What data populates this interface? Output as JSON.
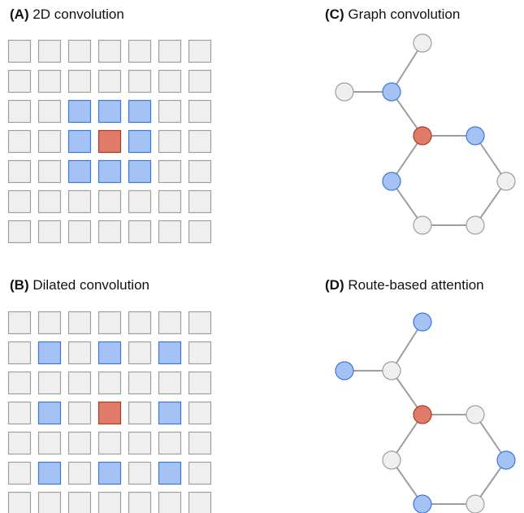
{
  "colors": {
    "grey_fill": "#efefef",
    "grey_stroke": "#9e9e9e",
    "blue_fill": "#a4c2f4",
    "blue_stroke": "#3c78d8",
    "red_fill": "#e07b6a",
    "red_stroke": "#a63d2c",
    "edge": "#9e9e9e"
  },
  "panels": {
    "a": {
      "letter": "(A)",
      "title": "2D convolution"
    },
    "b": {
      "letter": "(B)",
      "title": "Dilated convolution"
    },
    "c": {
      "letter": "(C)",
      "title": "Graph convolution"
    },
    "d": {
      "letter": "(D)",
      "title": "Route-based attention"
    }
  },
  "grids": {
    "a": {
      "rows": 7,
      "cols": 7,
      "cells": [
        [
          0,
          0,
          0,
          0,
          0,
          0,
          0
        ],
        [
          0,
          0,
          0,
          0,
          0,
          0,
          0
        ],
        [
          0,
          0,
          1,
          1,
          1,
          0,
          0
        ],
        [
          0,
          0,
          1,
          2,
          1,
          0,
          0
        ],
        [
          0,
          0,
          1,
          1,
          1,
          0,
          0
        ],
        [
          0,
          0,
          0,
          0,
          0,
          0,
          0
        ],
        [
          0,
          0,
          0,
          0,
          0,
          0,
          0
        ]
      ]
    },
    "b": {
      "rows": 7,
      "cols": 7,
      "cells": [
        [
          0,
          0,
          0,
          0,
          0,
          0,
          0
        ],
        [
          0,
          1,
          0,
          1,
          0,
          1,
          0
        ],
        [
          0,
          0,
          0,
          0,
          0,
          0,
          0
        ],
        [
          0,
          1,
          0,
          2,
          0,
          1,
          0
        ],
        [
          0,
          0,
          0,
          0,
          0,
          0,
          0
        ],
        [
          0,
          1,
          0,
          1,
          0,
          1,
          0
        ],
        [
          0,
          0,
          0,
          0,
          0,
          0,
          0
        ]
      ]
    }
  },
  "graphs": {
    "node_ids": [
      "top",
      "left",
      "hub",
      "center",
      "right",
      "lower-left",
      "lower-right",
      "bottom-left",
      "bottom-right"
    ],
    "edges": [
      [
        "top",
        "hub"
      ],
      [
        "left",
        "hub"
      ],
      [
        "hub",
        "center"
      ],
      [
        "center",
        "right"
      ],
      [
        "center",
        "lower-left"
      ],
      [
        "right",
        "lower-right"
      ],
      [
        "lower-left",
        "bottom-left"
      ],
      [
        "lower-right",
        "bottom-right"
      ],
      [
        "bottom-left",
        "bottom-right"
      ]
    ],
    "c": {
      "states": {
        "top": 0,
        "left": 0,
        "hub": 1,
        "center": 2,
        "right": 1,
        "lower-left": 1,
        "lower-right": 0,
        "bottom-left": 0,
        "bottom-right": 0
      }
    },
    "d": {
      "states": {
        "top": 1,
        "left": 1,
        "hub": 0,
        "center": 2,
        "right": 0,
        "lower-left": 0,
        "lower-right": 1,
        "bottom-left": 1,
        "bottom-right": 0
      }
    }
  }
}
